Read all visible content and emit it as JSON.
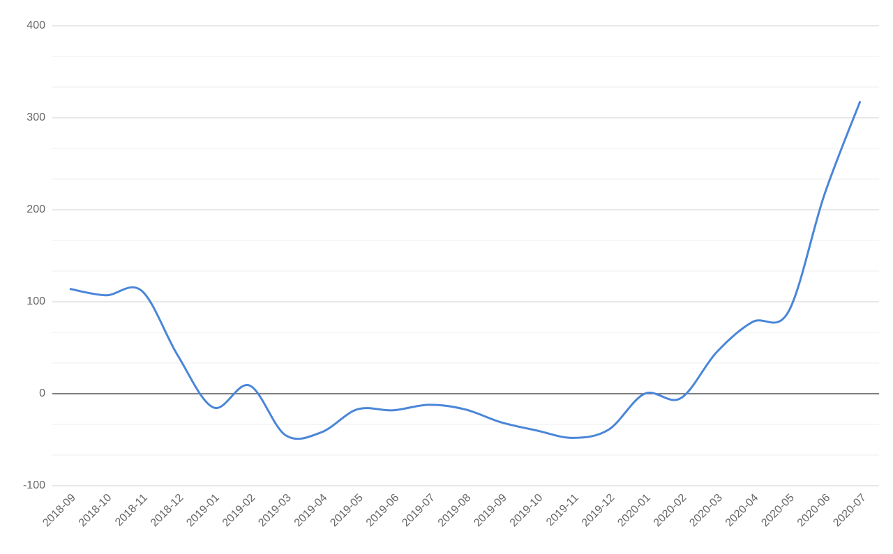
{
  "chart_data": {
    "type": "line",
    "categories": [
      "2018-09",
      "2018-10",
      "2018-11",
      "2018-12",
      "2019-01",
      "2019-02",
      "2019-03",
      "2019-04",
      "2019-05",
      "2019-06",
      "2019-07",
      "2019-08",
      "2019-09",
      "2019-10",
      "2019-11",
      "2019-12",
      "2020-01",
      "2020-02",
      "2020-03",
      "2020-04",
      "2020-05",
      "2020-06",
      "2020-07"
    ],
    "values": [
      114,
      107,
      112,
      42,
      -15,
      9,
      -45,
      -42,
      -17,
      -18,
      -12,
      -17,
      -31,
      -40,
      -48,
      -39,
      0,
      -5,
      45,
      78,
      89,
      216,
      318
    ],
    "color": "#4a86d8",
    "ylim": [
      -100,
      400
    ],
    "yticks": [
      -100,
      0,
      100,
      200,
      300,
      400
    ],
    "grid": true,
    "minor_grid_divisions": 3,
    "smooth": true
  }
}
